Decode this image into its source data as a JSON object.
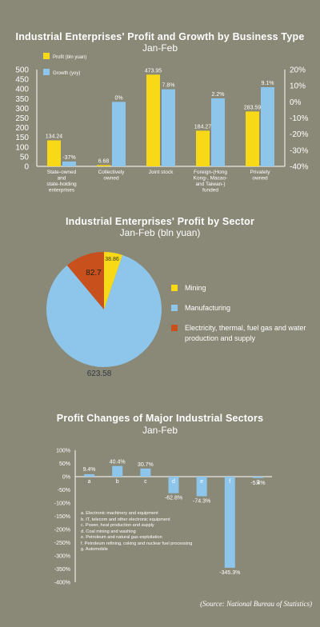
{
  "chart_data": [
    {
      "type": "bar",
      "title": "Industrial Enterprises' Profit and Growth by Business Type",
      "subtitle": "Jan-Feb",
      "categories": [
        "State-owned and state-holding enterprises",
        "Collectively owned",
        "Joint stock",
        "Foreign-(Hong Kong-, Macao- and Taiwan-) funded",
        "Privately owned"
      ],
      "series": [
        {
          "name": "Profit (bln yuan)",
          "axis": "left",
          "color": "#f7d917",
          "values": [
            134.24,
            6.68,
            473.95,
            184.27,
            283.59
          ],
          "labels": [
            "134.24",
            "6.68",
            "473.95",
            "184.27",
            "283.59"
          ]
        },
        {
          "name": "Growth (yoy)",
          "axis": "right",
          "color": "#8ec5ea",
          "values": [
            -37,
            0,
            7.8,
            2.2,
            9.1
          ],
          "labels": [
            "-37%",
            "0%",
            "7.8%",
            "2.2%",
            "9.1%"
          ]
        }
      ],
      "left_axis": {
        "ylim": [
          0,
          500
        ],
        "ticks": [
          "0",
          "50",
          "100",
          "150",
          "200",
          "250",
          "300",
          "350",
          "400",
          "450",
          "500"
        ]
      },
      "right_axis": {
        "ylim": [
          -40,
          20
        ],
        "ticks": [
          "20%",
          "10%",
          "0%",
          "-10%",
          "-20%",
          "-30%",
          "-40%"
        ]
      }
    },
    {
      "type": "pie",
      "title": "Industrial Enterprises' Profit by Sector",
      "subtitle": "Jan-Feb (bln yuan)",
      "slices": [
        {
          "label": "Mining",
          "value": 38.86,
          "text": "38.86",
          "color": "#f7d917"
        },
        {
          "label": "Manufacturing",
          "value": 623.58,
          "text": "623.58",
          "color": "#8ec5ea"
        },
        {
          "label": "Electricity, thermal, fuel gas and water production and supply",
          "value": 82.7,
          "text": "82.7",
          "color": "#c8501c"
        }
      ]
    },
    {
      "type": "bar",
      "title": "Profit Changes of Major Industrial Sectors",
      "subtitle": "Jan-Feb",
      "categories": [
        "a",
        "b",
        "c",
        "d",
        "e",
        "f",
        "g"
      ],
      "values": [
        9.4,
        40.4,
        30.7,
        -62.8,
        -74.3,
        -345.3,
        -5.4
      ],
      "labels": [
        "9.4%",
        "40.4%",
        "30.7%",
        "-62.8%",
        "-74.3%",
        "-345.3%",
        "-5.4%"
      ],
      "color": "#8ec5ea",
      "ylim": [
        -400,
        100
      ],
      "ticks": [
        "100%",
        "50%",
        "0%",
        "-50%",
        "-100%",
        "-150%",
        "-200%",
        "-250%",
        "-300%",
        "-350%",
        "-400%"
      ],
      "notes": [
        "a. Electronic machinery and equipment",
        "b. IT, telecom and other electronic equipment",
        "c. Power, heat production and supply",
        "d. Coal mining and washing",
        "e. Petroleum and natural gas exploitation",
        "f. Petroleum refining, coking and nuclear fuel processing",
        "g. Automobile"
      ]
    }
  ],
  "source": "(Source: National Bureau of Statistics)"
}
